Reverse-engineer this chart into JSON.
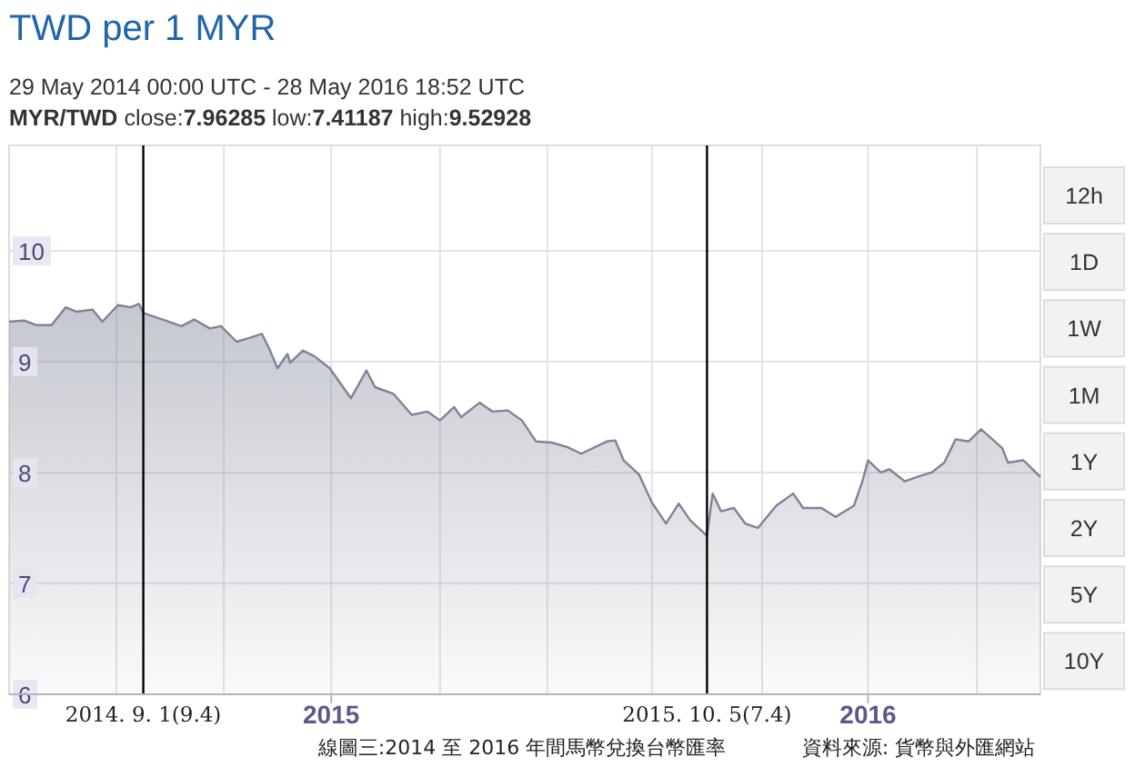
{
  "chart_data": {
    "type": "area",
    "title": "TWD per 1 MYR",
    "subtitle": "29 May 2014 00:00 UTC - 28 May 2016 18:52 UTC",
    "annotations": [
      "**MYR/TWD** close:**7.96285** low:**7.41187** high:**9.52928**",
      "12h",
      "1D",
      "1W",
      "1M",
      "1Y",
      "2Y",
      "5Y",
      "10Y",
      "線圖三:2014 至 2016 年間馬幣兌換台幣匯率",
      "資料來源: 貨幣與外匯網站"
    ],
    "xlim": [
      "2014-05-29",
      "2016-05-28"
    ],
    "ylim": [
      6,
      10.95
    ],
    "xticks": [
      {
        "value": "2014-08-13",
        "label": null
      },
      {
        "value": "2014-10-28",
        "label": null
      },
      {
        "value": "2015-01-12",
        "label": "2015"
      },
      {
        "value": "2015-03-30",
        "label": null
      },
      {
        "value": "2015-06-14",
        "label": null
      },
      {
        "value": "2015-08-27",
        "label": null
      },
      {
        "value": "2015-11-13",
        "label": null
      },
      {
        "value": "2016-01-27",
        "label": "2016"
      },
      {
        "value": "2016-04-13",
        "label": null
      }
    ],
    "yticks": [
      6,
      7,
      8,
      9,
      10
    ],
    "grid": true,
    "ref_lines": [
      {
        "axis": "x",
        "value": "2014-09-01",
        "label": "2014. 9. 1(9.4)",
        "color": "#000000"
      },
      {
        "axis": "x",
        "value": "2015-10-05",
        "label": "2015. 10. 5(7.4)",
        "color": "#000000"
      }
    ],
    "series": [
      {
        "color": "#7e8396",
        "x": [
          "2014-05-29",
          "2014-06-09",
          "2014-06-17",
          "2014-06-28",
          "2014-07-08",
          "2014-07-16",
          "2014-07-27",
          "2014-08-03",
          "2014-08-14",
          "2014-08-23",
          "2014-08-29",
          "2014-09-01",
          "2014-09-17",
          "2014-09-28",
          "2014-10-07",
          "2014-10-18",
          "2014-10-26",
          "2014-11-06",
          "2014-11-14",
          "2014-11-24",
          "2014-11-29",
          "2014-12-05",
          "2014-12-12",
          "2014-12-14",
          "2014-12-23",
          "2014-12-31",
          "2015-01-11",
          "2015-01-26",
          "2015-02-06",
          "2015-02-12",
          "2015-02-25",
          "2015-03-10",
          "2015-03-21",
          "2015-03-30",
          "2015-04-09",
          "2015-04-14",
          "2015-04-27",
          "2015-05-06",
          "2015-05-17",
          "2015-05-27",
          "2015-06-06",
          "2015-06-17",
          "2015-06-28",
          "2015-07-08",
          "2015-07-26",
          "2015-08-01",
          "2015-08-07",
          "2015-08-18",
          "2015-08-27",
          "2015-09-06",
          "2015-09-15",
          "2015-09-23",
          "2015-10-05",
          "2015-10-09",
          "2015-10-15",
          "2015-10-24",
          "2015-11-01",
          "2015-11-10",
          "2015-11-23",
          "2015-12-05",
          "2015-12-12",
          "2015-12-25",
          "2016-01-04",
          "2016-01-17",
          "2016-01-23",
          "2016-01-27",
          "2016-02-05",
          "2016-02-11",
          "2016-02-22",
          "2016-03-04",
          "2016-03-12",
          "2016-03-21",
          "2016-03-29",
          "2016-04-07",
          "2016-04-16",
          "2016-04-24",
          "2016-05-01",
          "2016-05-05",
          "2016-05-16",
          "2016-05-28"
        ],
        "values": [
          9.36,
          9.37,
          9.33,
          9.33,
          9.49,
          9.45,
          9.47,
          9.36,
          9.51,
          9.49,
          9.52,
          9.44,
          9.37,
          9.32,
          9.38,
          9.3,
          9.32,
          9.18,
          9.21,
          9.25,
          9.12,
          8.94,
          9.07,
          8.99,
          9.1,
          9.05,
          8.94,
          8.67,
          8.92,
          8.77,
          8.71,
          8.52,
          8.55,
          8.47,
          8.59,
          8.5,
          8.63,
          8.55,
          8.56,
          8.47,
          8.28,
          8.27,
          8.23,
          8.17,
          8.28,
          8.29,
          8.11,
          7.98,
          7.73,
          7.54,
          7.72,
          7.57,
          7.43,
          7.81,
          7.65,
          7.68,
          7.54,
          7.5,
          7.7,
          7.81,
          7.68,
          7.68,
          7.6,
          7.7,
          7.92,
          8.11,
          8.0,
          8.03,
          7.92,
          7.97,
          8.0,
          8.09,
          8.3,
          8.28,
          8.39,
          8.3,
          8.22,
          8.09,
          8.11,
          7.96
        ]
      }
    ]
  }
}
